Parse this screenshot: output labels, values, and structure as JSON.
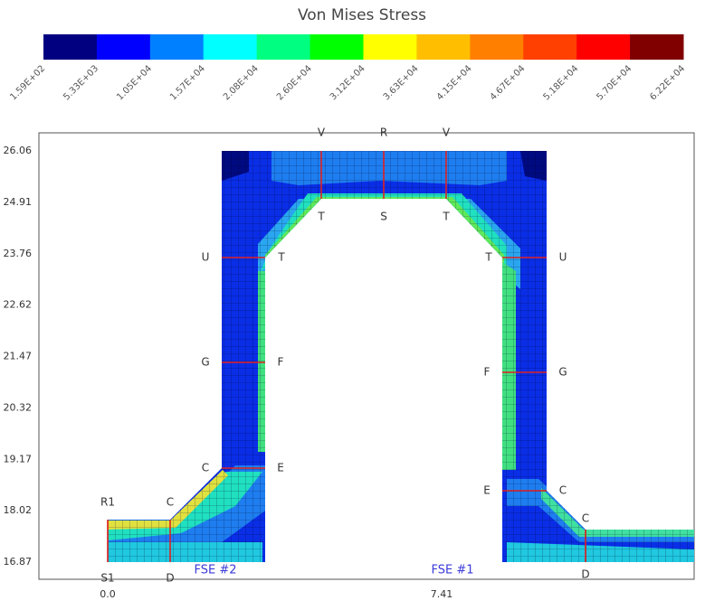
{
  "title": "Von Mises Stress",
  "colorbar": {
    "colors": [
      "#000080",
      "#0000ff",
      "#0080ff",
      "#00ffff",
      "#00ff80",
      "#00ff00",
      "#ffff00",
      "#ffbf00",
      "#ff8000",
      "#ff4000",
      "#ff0000",
      "#800000"
    ],
    "labels": [
      "1.59E+02",
      "5.33E+03",
      "1.05E+04",
      "1.57E+04",
      "2.08E+04",
      "2.60E+04",
      "3.12E+04",
      "3.63E+04",
      "4.15E+04",
      "4.67E+04",
      "5.18E+04",
      "5.70E+04",
      "6.22E+04"
    ]
  },
  "y_labels": [
    "26.06",
    "24.91",
    "23.76",
    "22.62",
    "21.47",
    "20.32",
    "19.17",
    "18.02",
    "16.87"
  ],
  "x_labels": [
    "0.0",
    "7.41"
  ],
  "point_labels": [
    "V",
    "R",
    "V",
    "T",
    "S",
    "T",
    "U",
    "T",
    "T",
    "U",
    "G",
    "F",
    "F",
    "G",
    "C",
    "E",
    "E",
    "C",
    "R1",
    "C",
    "C",
    "S1",
    "D",
    "D"
  ],
  "sections": [
    "FSE #2",
    "FSE #1"
  ]
}
